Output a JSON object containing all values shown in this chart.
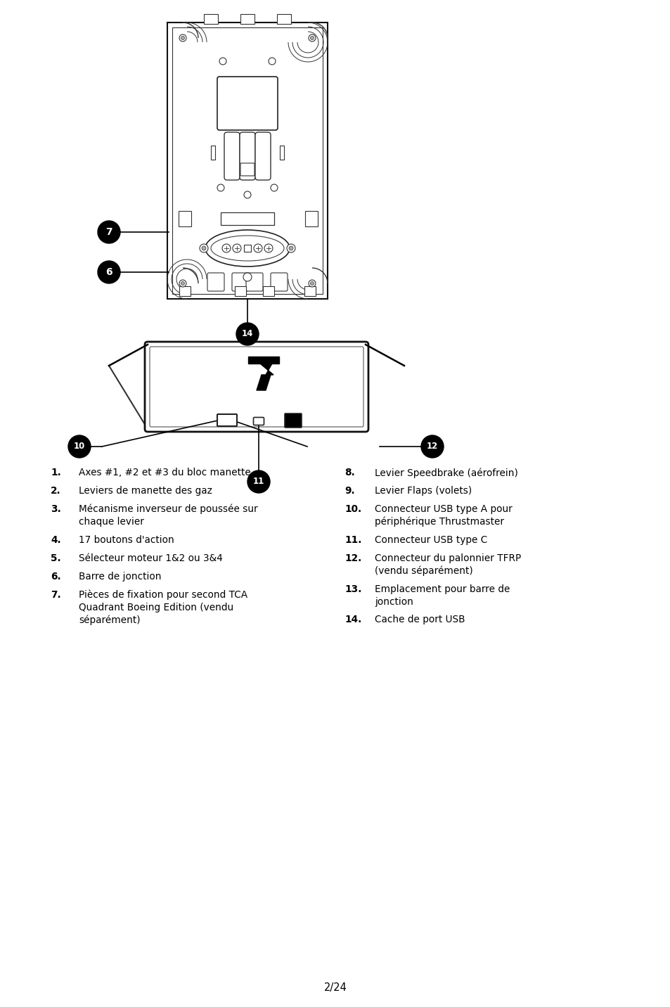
{
  "bg_color": "#ffffff",
  "page_number": "2/24",
  "list_items_left": [
    [
      "1.",
      "Axes #1, #2 et #3 du bloc manette"
    ],
    [
      "2.",
      "Leviers de manette des gaz"
    ],
    [
      "3.",
      "Mécanisme inverseur de poussée sur\nchaque levier"
    ],
    [
      "4.",
      "17 boutons d'action"
    ],
    [
      "5.",
      "Sélecteur moteur 1&2 ou 3&4"
    ],
    [
      "6.",
      "Barre de jonction"
    ],
    [
      "7.",
      "Pièces de fixation pour second TCA\nQuadrant Boeing Edition (vendu\nséparément)"
    ]
  ],
  "list_items_right": [
    [
      "8.",
      "Levier Speedbrake (aérofrein)"
    ],
    [
      "9.",
      "Levier Flaps (volets)"
    ],
    [
      "10.",
      "Connecteur USB type A pour\npériphérique Thrustmaster"
    ],
    [
      "11.",
      "Connecteur USB type C"
    ],
    [
      "12.",
      "Connecteur du palonnier TFRP\n(vendu séparément)"
    ],
    [
      "13.",
      "Emplacement pour barre de\njonction"
    ],
    [
      "14.",
      "Cache de port USB"
    ]
  ]
}
